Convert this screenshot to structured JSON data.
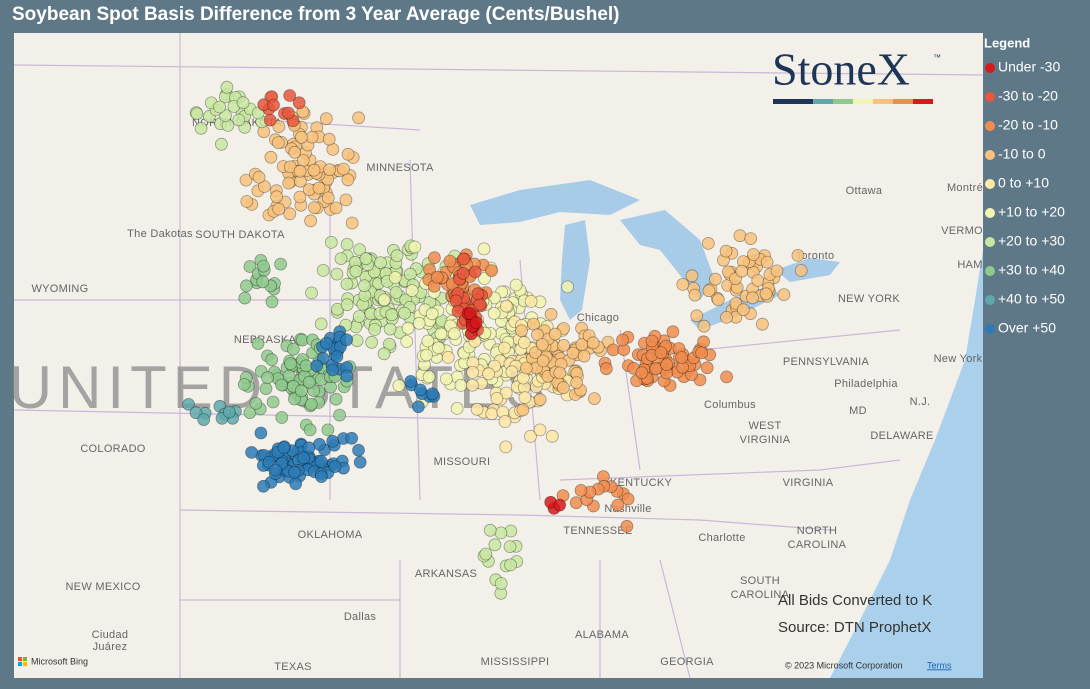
{
  "title": "Soybean Spot Basis Difference from 3 Year Average (Cents/Bushel)",
  "legend": {
    "title": "Legend",
    "items": [
      {
        "label": "Under -30",
        "color": "#d7191c"
      },
      {
        "label": "-30 to -20",
        "color": "#e8573c"
      },
      {
        "label": "-20 to -10",
        "color": "#f08c4e"
      },
      {
        "label": "-10 to 0",
        "color": "#f8c27c"
      },
      {
        "label": "0 to +10",
        "color": "#fde8a6"
      },
      {
        "label": "+10 to +20",
        "color": "#f1f5b2"
      },
      {
        "label": "+20 to +30",
        "color": "#c8e6a0"
      },
      {
        "label": "+30 to +40",
        "color": "#8fca8d"
      },
      {
        "label": "+40 to +50",
        "color": "#5ea8aa"
      },
      {
        "label": "Over +50",
        "color": "#2c7bb6"
      }
    ]
  },
  "logo": {
    "name": "StoneX",
    "mark": "™"
  },
  "country_label": "UNITED STATES",
  "map_labels": [
    "NORTH DAKOTA",
    "MINNESOTA",
    "The Dakotas",
    "SOUTH DAKOTA",
    "WYOMING",
    "NEBRASKA",
    "COLORADO",
    "MISSOURI",
    "OKLAHOMA",
    "ARKANSAS",
    "NEW MEXICO",
    "Dallas",
    "Ciudad",
    "Juárez",
    "TEXAS",
    "MISSISSIPPI",
    "ALABAMA",
    "GEORGIA",
    "TENNESSEE",
    "Nashville",
    "KENTUCKY",
    "Chicago",
    "Columbus",
    "WEST",
    "VIRGINIA",
    "VIRGINIA",
    "NORTH",
    "CAROLINA",
    "Charlotte",
    "SOUTH",
    "CAROLINA",
    "PENNSYLVANIA",
    "NEW YORK",
    "Toronto",
    "Ottawa",
    "Montré",
    "Philadelphia",
    "DELAWARE",
    "MD",
    "N.J.",
    "New York",
    "VERMO",
    "HAM"
  ],
  "notes": [
    "All Bids Converted to K",
    "Source: DTN ProphetX"
  ],
  "attribution": {
    "provider": "Microsoft Bing",
    "copyright": "© 2023 Microsoft Corporation",
    "terms": "Terms"
  }
}
